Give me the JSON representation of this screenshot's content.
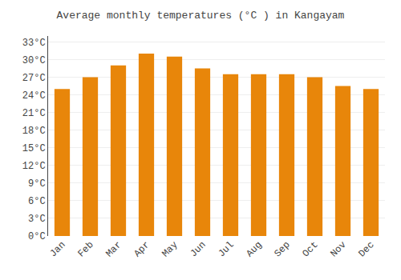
{
  "chart_data": {
    "type": "bar",
    "title": "Average monthly temperatures (°C ) in Kangayam",
    "categories": [
      "Jan",
      "Feb",
      "Mar",
      "Apr",
      "May",
      "Jun",
      "Jul",
      "Aug",
      "Sep",
      "Oct",
      "Nov",
      "Dec"
    ],
    "values": [
      25.0,
      27.0,
      29.0,
      31.0,
      30.5,
      28.5,
      27.5,
      27.5,
      27.5,
      27.0,
      25.5,
      25.0
    ],
    "color": "#E8860A",
    "ylim": [
      0,
      34
    ],
    "yticks": [
      {
        "value": 0,
        "label": "0°C"
      },
      {
        "value": 3,
        "label": "3°C"
      },
      {
        "value": 6,
        "label": "6°C"
      },
      {
        "value": 9,
        "label": "9°C"
      },
      {
        "value": 12,
        "label": "12°C"
      },
      {
        "value": 15,
        "label": "15°C"
      },
      {
        "value": 18,
        "label": "18°C"
      },
      {
        "value": 21,
        "label": "21°C"
      },
      {
        "value": 24,
        "label": "24°C"
      },
      {
        "value": 27,
        "label": "27°C"
      },
      {
        "value": 30,
        "label": "30°C"
      },
      {
        "value": 33,
        "label": "33°C"
      }
    ],
    "grid": true
  }
}
